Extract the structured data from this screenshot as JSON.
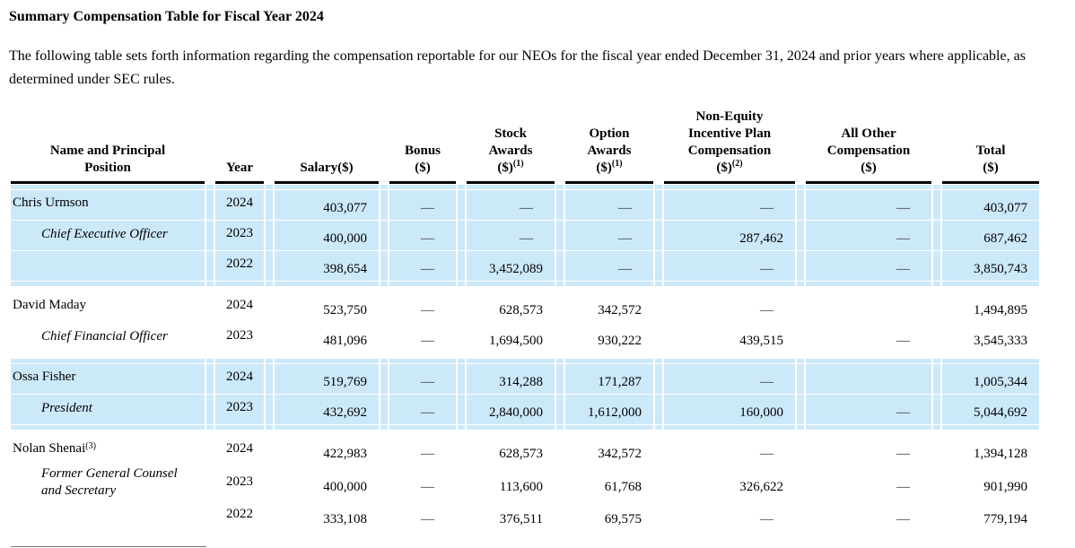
{
  "page": {
    "title": "Summary Compensation Table for Fiscal Year 2024",
    "intro": "The following table sets forth information regarding the compensation reportable for our NEOs for the fiscal year ended December 31, 2024 and prior years where applicable, as determined under SEC rules."
  },
  "colors": {
    "row_stripe": "#cce9fa",
    "header_rule": "#000000",
    "text": "#000000"
  },
  "table": {
    "columns": [
      {
        "id": "name",
        "label": "Name and Principal\nPosition",
        "sup": ""
      },
      {
        "id": "year",
        "label": "Year",
        "sup": ""
      },
      {
        "id": "salary",
        "label": "Salary($)",
        "sup": ""
      },
      {
        "id": "bonus",
        "label": "Bonus\n($)",
        "sup": ""
      },
      {
        "id": "stock",
        "label": "Stock\nAwards\n($)",
        "sup": "(1)"
      },
      {
        "id": "option",
        "label": "Option\nAwards\n($)",
        "sup": "(1)"
      },
      {
        "id": "nonequity",
        "label": "Non-Equity\nIncentive Plan\nCompensation\n($)",
        "sup": "(2)"
      },
      {
        "id": "allother",
        "label": "All Other\nCompensation\n($)",
        "sup": ""
      },
      {
        "id": "total",
        "label": "Total\n($)",
        "sup": ""
      }
    ],
    "groups": [
      {
        "name": "Chris Urmson",
        "name_sup": "",
        "position": "Chief Executive Officer",
        "shade": true,
        "rows": [
          {
            "year": "2024",
            "salary": "403,077",
            "bonus": "—",
            "stock": "—",
            "option": "—",
            "nonequity": "—",
            "allother": "—",
            "total": "403,077"
          },
          {
            "year": "2023",
            "salary": "400,000",
            "bonus": "—",
            "stock": "—",
            "option": "—",
            "nonequity": "287,462",
            "allother": "—",
            "total": "687,462"
          },
          {
            "year": "2022",
            "salary": "398,654",
            "bonus": "—",
            "stock": "3,452,089",
            "option": "—",
            "nonequity": "—",
            "allother": "—",
            "total": "3,850,743"
          }
        ]
      },
      {
        "name": "David Maday",
        "name_sup": "",
        "position": "Chief Financial Officer",
        "shade": false,
        "rows": [
          {
            "year": "2024",
            "salary": "523,750",
            "bonus": "—",
            "stock": "628,573",
            "option": "342,572",
            "nonequity": "—",
            "allother": "",
            "total": "1,494,895"
          },
          {
            "year": "2023",
            "salary": "481,096",
            "bonus": "—",
            "stock": "1,694,500",
            "option": "930,222",
            "nonequity": "439,515",
            "allother": "—",
            "total": "3,545,333"
          }
        ]
      },
      {
        "name": "Ossa Fisher",
        "name_sup": "",
        "position": "President",
        "shade": true,
        "rows": [
          {
            "year": "2024",
            "salary": "519,769",
            "bonus": "—",
            "stock": "314,288",
            "option": "171,287",
            "nonequity": "—",
            "allother": "",
            "total": "1,005,344"
          },
          {
            "year": "2023",
            "salary": "432,692",
            "bonus": "—",
            "stock": "2,840,000",
            "option": "1,612,000",
            "nonequity": "160,000",
            "allother": "—",
            "total": "5,044,692"
          }
        ]
      },
      {
        "name": "Nolan Shenai",
        "name_sup": "(3)",
        "position": "Former General Counsel and Secretary",
        "shade": false,
        "rows": [
          {
            "year": "2024",
            "salary": "422,983",
            "bonus": "—",
            "stock": "628,573",
            "option": "342,572",
            "nonequity": "—",
            "allother": "—",
            "total": "1,394,128"
          },
          {
            "year": "2023",
            "salary": "400,000",
            "bonus": "—",
            "stock": "113,600",
            "option": "61,768",
            "nonequity": "326,622",
            "allother": "—",
            "total": "901,990"
          },
          {
            "year": "2022",
            "salary": "333,108",
            "bonus": "—",
            "stock": "376,511",
            "option": "69,575",
            "nonequity": "—",
            "allother": "—",
            "total": "779,194"
          }
        ]
      }
    ]
  }
}
